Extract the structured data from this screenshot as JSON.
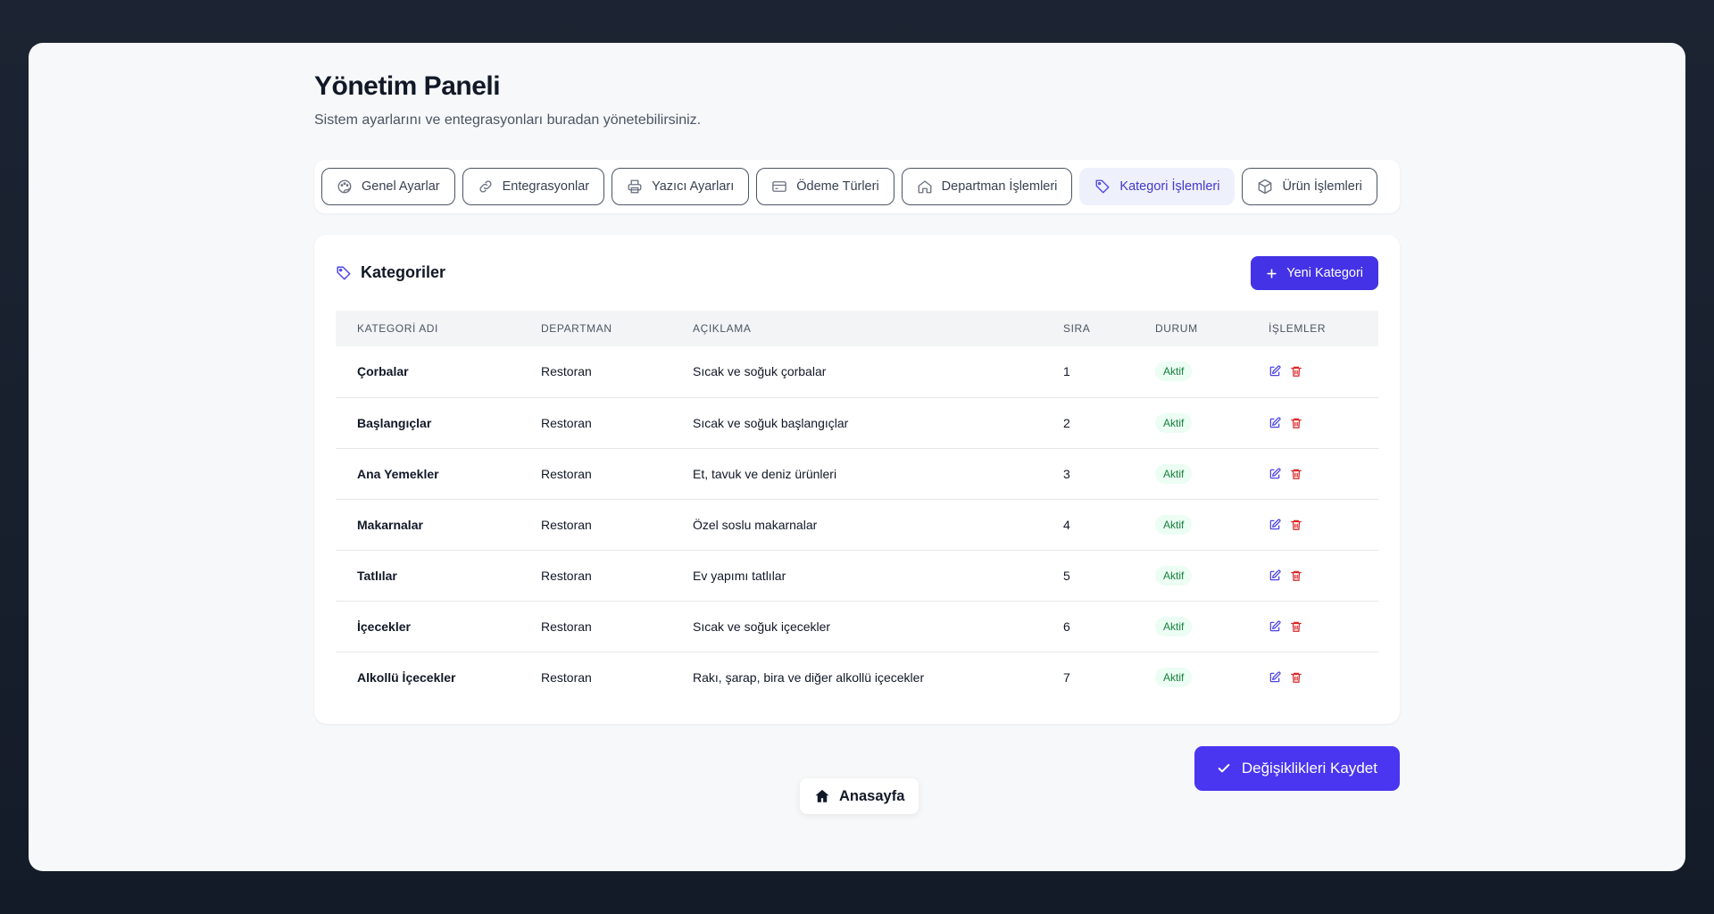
{
  "header": {
    "title": "Yönetim Paneli",
    "subtitle": "Sistem ayarlarını ve entegrasyonları buradan yönetebilirsiniz."
  },
  "tabs": [
    {
      "label": "Genel Ayarlar",
      "icon": "palette-icon",
      "active": false
    },
    {
      "label": "Entegrasyonlar",
      "icon": "link-icon",
      "active": false
    },
    {
      "label": "Yazıcı Ayarları",
      "icon": "printer-icon",
      "active": false
    },
    {
      "label": "Ödeme Türleri",
      "icon": "credit-card-icon",
      "active": false
    },
    {
      "label": "Departman İşlemleri",
      "icon": "home-icon",
      "active": false
    },
    {
      "label": "Kategori İşlemleri",
      "icon": "tag-icon",
      "active": true
    },
    {
      "label": "Ürün İşlemleri",
      "icon": "box-icon",
      "active": false
    }
  ],
  "panel": {
    "title": "Kategoriler",
    "new_button": "Yeni Kategori",
    "columns": [
      "KATEGORİ ADI",
      "DEPARTMAN",
      "AÇIKLAMA",
      "SIRA",
      "DURUM",
      "İŞLEMLER"
    ],
    "rows": [
      {
        "name": "Çorbalar",
        "department": "Restoran",
        "description": "Sıcak ve soğuk çorbalar",
        "order": "1",
        "status": "Aktif"
      },
      {
        "name": "Başlangıçlar",
        "department": "Restoran",
        "description": "Sıcak ve soğuk başlangıçlar",
        "order": "2",
        "status": "Aktif"
      },
      {
        "name": "Ana Yemekler",
        "department": "Restoran",
        "description": "Et, tavuk ve deniz ürünleri",
        "order": "3",
        "status": "Aktif"
      },
      {
        "name": "Makarnalar",
        "department": "Restoran",
        "description": "Özel soslu makarnalar",
        "order": "4",
        "status": "Aktif"
      },
      {
        "name": "Tatlılar",
        "department": "Restoran",
        "description": "Ev yapımı tatlılar",
        "order": "5",
        "status": "Aktif"
      },
      {
        "name": "İçecekler",
        "department": "Restoran",
        "description": "Sıcak ve soğuk içecekler",
        "order": "6",
        "status": "Aktif"
      },
      {
        "name": "Alkollü İçecekler",
        "department": "Restoran",
        "description": "Rakı, şarap, bira ve diğer alkollü içecekler",
        "order": "7",
        "status": "Aktif"
      }
    ]
  },
  "footer": {
    "save_button": "Değişiklikleri Kaydet",
    "home_button": "Anasayfa"
  },
  "colors": {
    "accent": "#4433e6",
    "active_tab_bg": "#eef0fb",
    "status_green": "#15803d",
    "delete_red": "#dc2626"
  }
}
